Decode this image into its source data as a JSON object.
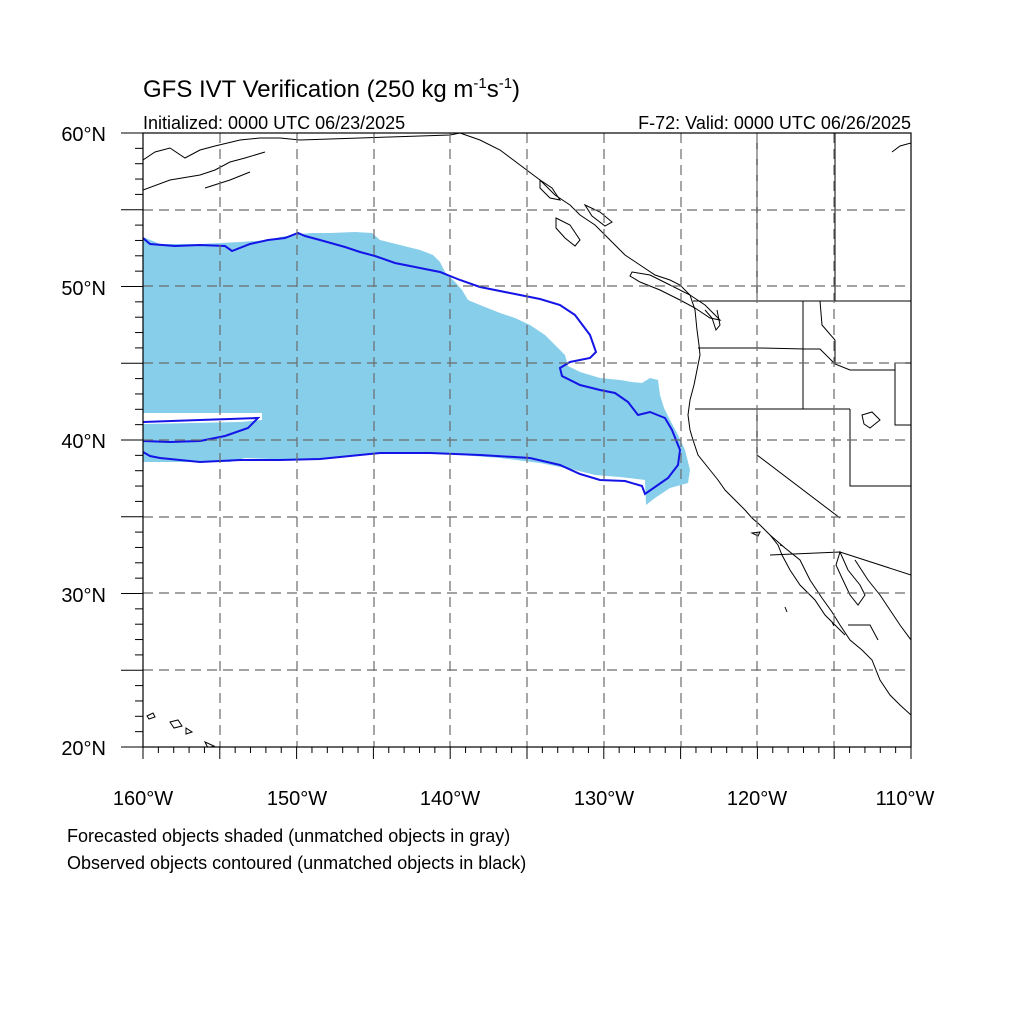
{
  "title_main": "GFS IVT Verification (250 kg m",
  "title_sup1": "-1",
  "title_mid": "s",
  "title_sup2": "-1",
  "title_end": ")",
  "init_text": "Initialized: 0000 UTC 06/23/2025",
  "valid_text": "F-72: Valid: 0000 UTC 06/26/2025",
  "lat_labels": [
    "60°N",
    "50°N",
    "40°N",
    "30°N",
    "20°N"
  ],
  "lon_labels": [
    "160°W",
    "150°W",
    "140°W",
    "130°W",
    "120°W",
    "110°W"
  ],
  "footnote1": "Forecasted objects shaded (unmatched objects in gray)",
  "footnote2": "Observed objects contoured (unmatched objects in black)",
  "colors": {
    "forecast_fill": "#87ceea",
    "observed_contour": "#1414e6"
  },
  "map_extent": {
    "lon_min": -160,
    "lon_max": -110,
    "lat_min": 20,
    "lat_max": 60
  }
}
